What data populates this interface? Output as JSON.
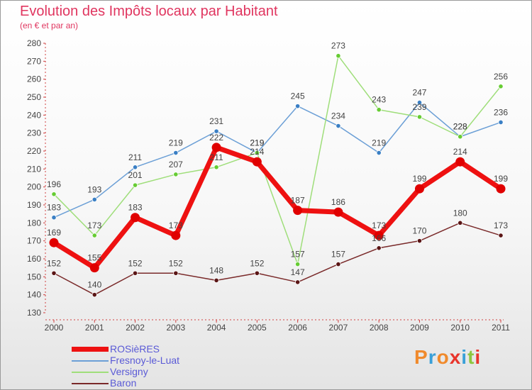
{
  "title": "Evolution des Impôts locaux par Habitant",
  "subtitle": "(en € et par an)",
  "brand": "Proxiti",
  "brand_colors": [
    "#f08a2c",
    "#3aa0d8",
    "#f08a2c",
    "#e8352c",
    "#3aa0d8",
    "#8dc63f",
    "#e8352c"
  ],
  "chart_data": {
    "type": "line",
    "title": "Evolution des Impôts locaux par Habitant",
    "subtitle": "(en € et par an)",
    "xlabel": "",
    "ylabel": "",
    "ylim": [
      130,
      280
    ],
    "yticks": [
      130,
      140,
      150,
      160,
      170,
      180,
      190,
      200,
      210,
      220,
      230,
      240,
      250,
      260,
      270,
      280
    ],
    "categories": [
      "2000",
      "2001",
      "2002",
      "2003",
      "2004",
      "2005",
      "2006",
      "2007",
      "2008",
      "2009",
      "2010",
      "2011"
    ],
    "grid": false,
    "legend_position": "bottom-left",
    "series": [
      {
        "name": "ROSièRES",
        "color": "#ee1111",
        "marker": "#e00000",
        "label_color": "#444444",
        "values": [
          169,
          155,
          183,
          173,
          222,
          214,
          187,
          186,
          173,
          199,
          214,
          199
        ]
      },
      {
        "name": "Fresnoy-le-Luat",
        "color": "#6b9fd6",
        "marker": "#3a7fc4",
        "label_color": "#444444",
        "values": [
          183,
          193,
          211,
          219,
          231,
          219,
          245,
          234,
          219,
          247,
          228,
          236
        ]
      },
      {
        "name": "Versigny",
        "color": "#9fde7a",
        "marker": "#66cc33",
        "label_color": "#444444",
        "values": [
          196,
          173,
          201,
          207,
          211,
          219,
          157,
          273,
          243,
          239,
          228,
          256
        ]
      },
      {
        "name": "Baron",
        "color": "#7a2a2a",
        "marker": "#5a1515",
        "label_color": "#444444",
        "values": [
          152,
          140,
          152,
          152,
          148,
          152,
          147,
          157,
          166,
          170,
          180,
          173
        ]
      }
    ]
  }
}
